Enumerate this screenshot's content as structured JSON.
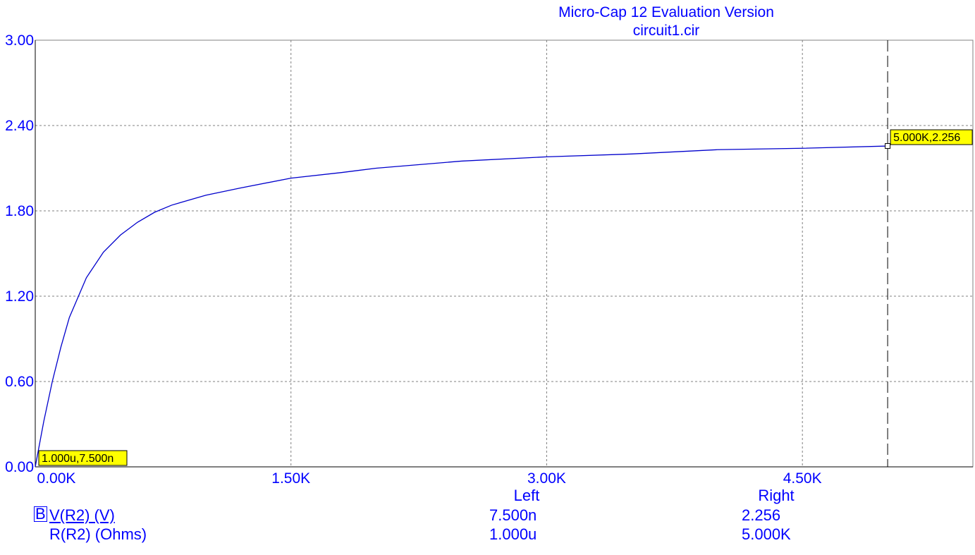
{
  "window": {
    "title": "Micro-Cap 12 Evaluation Version",
    "subtitle": "circuit1.cir"
  },
  "colors": {
    "text": "#0000ff",
    "trace": "#0000cc",
    "grid": "#808080",
    "axis": "#000000",
    "label_bg": "#ffff00"
  },
  "chart_data": {
    "type": "line",
    "xlim": [
      0,
      5500
    ],
    "ylim": [
      0,
      3
    ],
    "x_tick_labels": [
      "0.00K",
      "1.50K",
      "3.00K",
      "4.50K"
    ],
    "x_tick_values": [
      0,
      1500,
      3000,
      4500
    ],
    "y_tick_labels": [
      "0.00",
      "0.60",
      "1.20",
      "1.80",
      "2.40",
      "3.00"
    ],
    "y_tick_values": [
      0,
      0.6,
      1.2,
      1.8,
      2.4,
      3.0
    ],
    "grid": true,
    "series": [
      {
        "name": "V(R2) (V)",
        "x": [
          0,
          25,
          50,
          100,
          150,
          200,
          300,
          400,
          500,
          600,
          700,
          800,
          1000,
          1200,
          1500,
          1800,
          2000,
          2500,
          3000,
          3500,
          4000,
          4500,
          5000
        ],
        "y": [
          0,
          0.16,
          0.32,
          0.6,
          0.84,
          1.05,
          1.33,
          1.51,
          1.63,
          1.72,
          1.79,
          1.84,
          1.91,
          1.96,
          2.03,
          2.07,
          2.1,
          2.15,
          2.18,
          2.2,
          2.23,
          2.24,
          2.256
        ]
      }
    ],
    "cursors": {
      "left": {
        "x": 1e-06,
        "y": 7.5e-09,
        "label": "1.000u,7.500n"
      },
      "right": {
        "x": 5000,
        "y": 2.256,
        "label": "5.000K,2.256"
      }
    }
  },
  "readout": {
    "col_left_header": "Left",
    "col_right_header": "Right",
    "rows": [
      {
        "marker": "B",
        "name": "V(R2) (V)",
        "left": "7.500n",
        "right": "2.256"
      },
      {
        "marker": "",
        "name": "R(R2) (Ohms)",
        "left": "1.000u",
        "right": "5.000K"
      }
    ]
  }
}
